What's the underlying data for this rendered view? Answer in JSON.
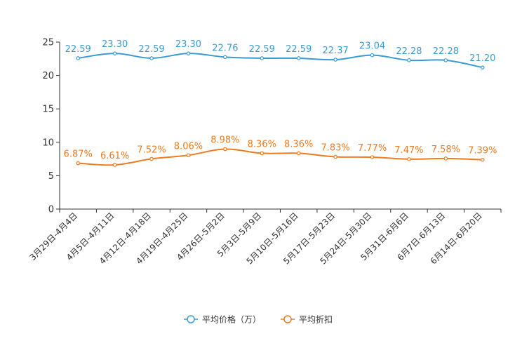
{
  "chart_data": {
    "type": "line",
    "title": "",
    "xlabel": "",
    "ylabel": "",
    "ylim": [
      0,
      25
    ],
    "yticks": [
      0,
      5,
      10,
      15,
      20,
      25
    ],
    "grid": false,
    "legend_position": "bottom-center",
    "categories": [
      "3月29日-4月4日",
      "4月5日-4月11日",
      "4月12日-4月18日",
      "4月19日-4月25日",
      "4月26日-5月2日",
      "5月3日-5月9日",
      "5月10日-5月16日",
      "5月17日-5月23日",
      "5月24日-5月30日",
      "5月31日-6月6日",
      "6月7日-6月13日",
      "6月14日-6月20日"
    ],
    "series": [
      {
        "name": "平均价格（万）",
        "color": "#3a9bd3",
        "values": [
          22.59,
          23.3,
          22.59,
          23.3,
          22.76,
          22.59,
          22.59,
          22.37,
          23.04,
          22.28,
          22.28,
          21.2
        ],
        "labels": [
          "22.59",
          "23.30",
          "22.59",
          "23.30",
          "22.76",
          "22.59",
          "22.59",
          "22.37",
          "23.04",
          "22.28",
          "22.28",
          "21.20"
        ]
      },
      {
        "name": "平均折扣",
        "color": "#f07b21",
        "values": [
          6.87,
          6.61,
          7.52,
          8.06,
          8.98,
          8.36,
          8.36,
          7.83,
          7.77,
          7.47,
          7.58,
          7.39
        ],
        "labels": [
          "6.87%",
          "6.61%",
          "7.52%",
          "8.06%",
          "8.98%",
          "8.36%",
          "8.36%",
          "7.83%",
          "7.77%",
          "7.47%",
          "7.58%",
          "7.39%"
        ]
      }
    ]
  }
}
